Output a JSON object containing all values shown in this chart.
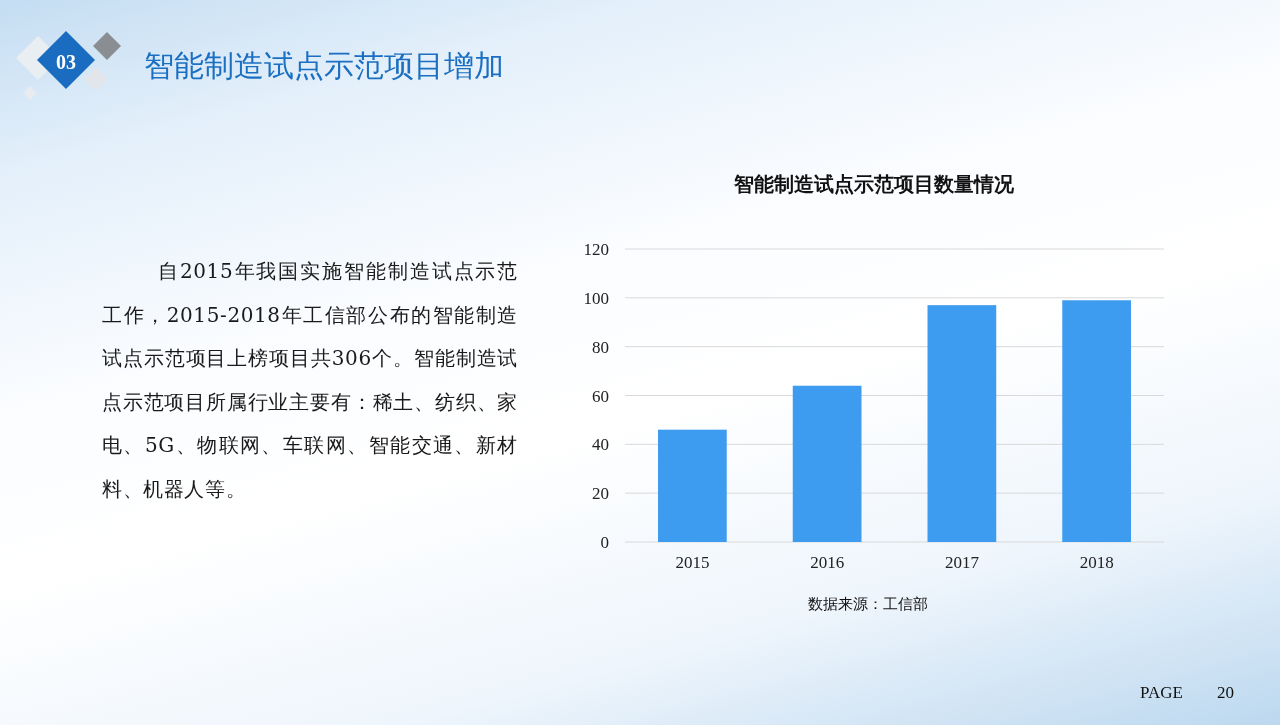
{
  "chart_data": {
    "type": "bar",
    "title": "智能制造试点示范项目数量情况",
    "categories": [
      "2015",
      "2016",
      "2017",
      "2018"
    ],
    "values": [
      46,
      64,
      97,
      99
    ],
    "color": "#3d9bf0",
    "ylim": [
      0,
      120
    ],
    "yticks": [
      0,
      20,
      40,
      60,
      80,
      100,
      120
    ],
    "grid": "y",
    "annotations": [
      "03",
      "智能制造试点示范项目增加",
      "自2015年我国实施智能制造试点示范工作，2015-2018年工信部公布的智能制造试点示范项目上榜项目共306个。智能制造试点示范项目所属行业主要有：稀土、纺织、家电、5G、物联网、车联网、智能交通、新材料、机器人等。",
      "数据来源：工信部",
      "PAGE 20"
    ]
  }
}
